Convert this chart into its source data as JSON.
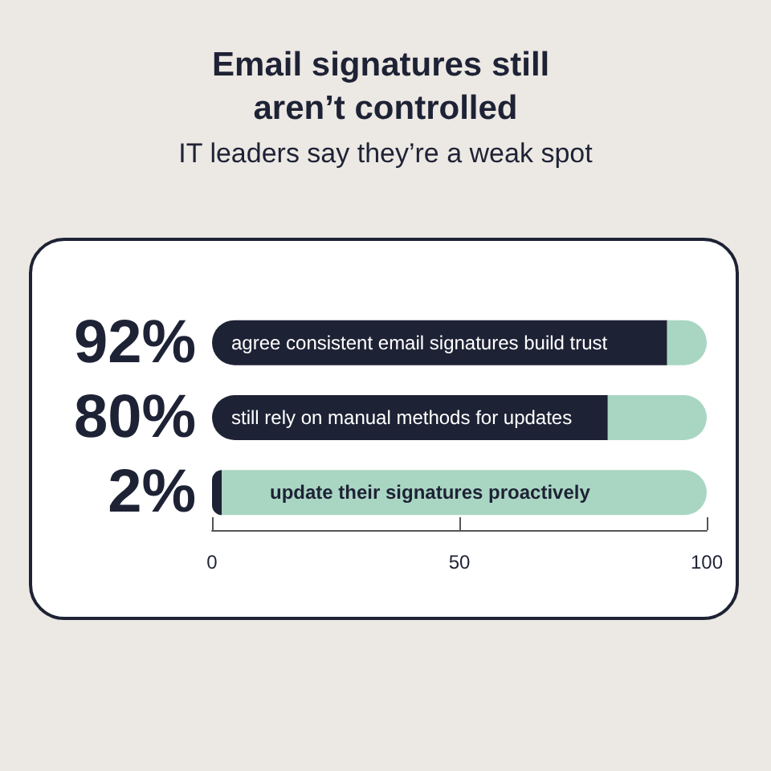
{
  "chart_data": {
    "type": "bar",
    "orientation": "horizontal",
    "stacked": true,
    "title": "Email signatures still aren’t controlled",
    "subtitle": "IT leaders say they’re a weak spot",
    "categories": [
      "agree consistent email signatures build trust",
      "still rely on manual methods for updates",
      "update their signatures proactively"
    ],
    "series": [
      {
        "color": "#1e2235",
        "values": [
          92,
          80,
          2
        ],
        "value_labels": [
          "92%",
          "80%",
          "2%"
        ]
      },
      {
        "color": "#a9d6c3",
        "values": [
          8,
          20,
          98
        ]
      }
    ],
    "xlim": [
      0,
      100
    ],
    "xticks": [
      0,
      50,
      100
    ],
    "grid": false
  }
}
